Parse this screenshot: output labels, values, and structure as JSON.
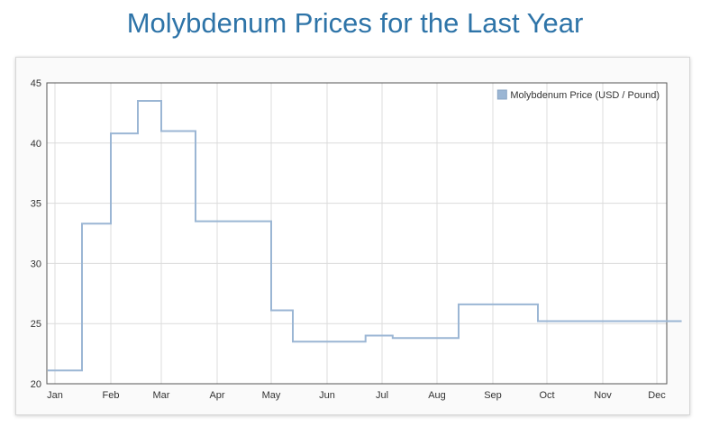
{
  "page": {
    "title": "Molybdenum Prices for the Last Year"
  },
  "chart_data": {
    "type": "line",
    "line_shape": "step",
    "title": "Molybdenum Prices for the Last Year",
    "xlabel": "",
    "ylabel": "",
    "x_ticks": [
      "Jan",
      "Feb",
      "Mar",
      "Apr",
      "May",
      "Jun",
      "Jul",
      "Aug",
      "Sep",
      "Oct",
      "Nov",
      "Dec"
    ],
    "y_ticks": [
      20,
      25,
      30,
      35,
      40,
      45
    ],
    "ylim": [
      20,
      45
    ],
    "grid": true,
    "legend_position": "top-right",
    "series": [
      {
        "name": "Molybdenum Price (USD / Pound)",
        "color": "#9bb6d4",
        "points": [
          [
            "Jan 1",
            21.1
          ],
          [
            "Jan 16",
            33.3
          ],
          [
            "Feb 1",
            40.8
          ],
          [
            "Feb 16",
            43.5
          ],
          [
            "Mar 1",
            41.0
          ],
          [
            "Mar 20",
            33.5
          ],
          [
            "May 1",
            26.1
          ],
          [
            "May 13",
            23.5
          ],
          [
            "Jun 22",
            24.0
          ],
          [
            "Jul 7",
            23.8
          ],
          [
            "Aug 13",
            26.6
          ],
          [
            "Sep 26",
            25.2
          ],
          [
            "Dec 15",
            25.2
          ]
        ]
      }
    ]
  }
}
